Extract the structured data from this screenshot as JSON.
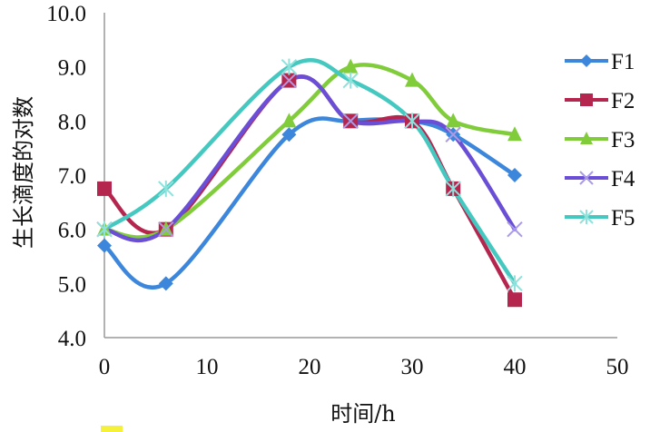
{
  "chart_data": {
    "type": "line",
    "title": "",
    "xlabel": "时间/h",
    "ylabel": "生长滴度的对数",
    "xlim": [
      0,
      50
    ],
    "ylim": [
      4.0,
      10.0
    ],
    "x_ticks": [
      "0",
      "10",
      "20",
      "30",
      "40",
      "50"
    ],
    "y_ticks": [
      "4.0",
      "5.0",
      "6.0",
      "7.0",
      "8.0",
      "9.0",
      "10.0"
    ],
    "grid": false,
    "legend_position": "right",
    "smooth": true,
    "x": [
      0,
      6,
      18,
      24,
      30,
      34,
      40
    ],
    "series": [
      {
        "name": "F1",
        "color": "#3c86dc",
        "marker": "diamond",
        "values": [
          5.7,
          5.0,
          7.75,
          8.0,
          8.0,
          7.75,
          7.0
        ]
      },
      {
        "name": "F2",
        "color": "#b5264f",
        "marker": "square",
        "values": [
          6.75,
          6.0,
          8.75,
          8.0,
          8.0,
          6.75,
          4.7
        ]
      },
      {
        "name": "F3",
        "color": "#80cc3a",
        "marker": "triangle",
        "values": [
          6.0,
          6.0,
          8.0,
          9.0,
          8.75,
          8.0,
          7.75
        ]
      },
      {
        "name": "F4",
        "color": "#6a4fd6",
        "marker": "x",
        "values": [
          6.0,
          6.0,
          8.75,
          8.0,
          8.0,
          7.75,
          6.0
        ]
      },
      {
        "name": "F5",
        "color": "#45c8c0",
        "marker": "asterisk",
        "values": [
          6.0,
          6.75,
          9.0,
          8.75,
          8.0,
          6.75,
          5.0
        ]
      }
    ]
  }
}
